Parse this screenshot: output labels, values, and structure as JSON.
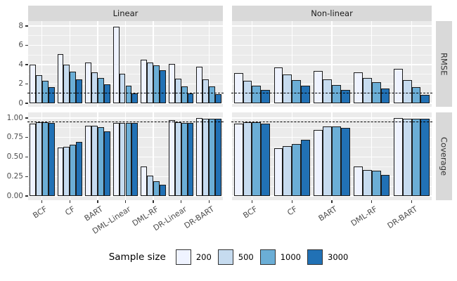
{
  "figure": {
    "facet_columns": [
      "Linear",
      "Non-linear"
    ],
    "facet_rows": [
      "RMSE",
      "Coverage"
    ],
    "legend": {
      "title": "Sample size",
      "keys": [
        {
          "label": "200",
          "color": "#EFF3FF"
        },
        {
          "label": "500",
          "color": "#C6DBEF"
        },
        {
          "label": "1000",
          "color": "#6BAED6"
        },
        {
          "label": "3000",
          "color": "#2171B5"
        }
      ]
    },
    "colors": {
      "panel_background": "#EBEBEB",
      "strip_background": "#D9D9D9",
      "gridline": "#FFFFFF",
      "bar_outline": "#1A1A1A",
      "axis_text": "#4D4D4D",
      "reference_line": "#000000"
    }
  },
  "chart_data": [
    {
      "type": "bar",
      "facet_row": "RMSE",
      "facet_column": "Linear",
      "categories": [
        "BCF",
        "CF",
        "BART",
        "DML-Linear",
        "DML-RF",
        "DR-Linear",
        "DR-BART"
      ],
      "series": [
        {
          "name": "200",
          "values": [
            4.0,
            5.1,
            4.2,
            7.9,
            4.5,
            4.1,
            3.8
          ]
        },
        {
          "name": "500",
          "values": [
            2.9,
            4.0,
            3.2,
            3.05,
            4.25,
            2.55,
            2.5
          ]
        },
        {
          "name": "1000",
          "values": [
            2.35,
            3.3,
            2.65,
            1.85,
            3.95,
            1.75,
            1.75
          ]
        },
        {
          "name": "3000",
          "values": [
            1.7,
            2.5,
            1.95,
            1.0,
            3.45,
            1.0,
            0.95
          ]
        }
      ],
      "ylim": [
        0,
        8.5
      ],
      "yticks": [
        {
          "label": "0",
          "value": 0
        },
        {
          "label": "2",
          "value": 2
        },
        {
          "label": "4",
          "value": 4
        },
        {
          "label": "6",
          "value": 6
        },
        {
          "label": "8",
          "value": 8
        }
      ],
      "ref_line": 1,
      "grid": true,
      "legend_position": "bottom"
    },
    {
      "type": "bar",
      "facet_row": "RMSE",
      "facet_column": "Non-linear",
      "categories": [
        "BCF",
        "CF",
        "BART",
        "DML-RF",
        "DR-BART"
      ],
      "series": [
        {
          "name": "200",
          "values": [
            3.15,
            3.7,
            3.35,
            3.2,
            3.6
          ]
        },
        {
          "name": "500",
          "values": [
            2.3,
            2.95,
            2.45,
            2.65,
            2.4
          ]
        },
        {
          "name": "1000",
          "values": [
            1.8,
            2.4,
            1.9,
            2.2,
            1.7
          ]
        },
        {
          "name": "3000",
          "values": [
            1.35,
            1.8,
            1.4,
            1.5,
            0.85
          ]
        }
      ],
      "ylim": [
        0,
        8.5
      ],
      "yticks": [
        {
          "label": "0",
          "value": 0
        },
        {
          "label": "2",
          "value": 2
        },
        {
          "label": "4",
          "value": 4
        },
        {
          "label": "6",
          "value": 6
        },
        {
          "label": "8",
          "value": 8
        }
      ],
      "ref_line": 1,
      "grid": true,
      "legend_position": "bottom"
    },
    {
      "type": "bar",
      "facet_row": "Coverage",
      "facet_column": "Linear",
      "categories": [
        "BCF",
        "CF",
        "BART",
        "DML-Linear",
        "DML-RF",
        "DR-Linear",
        "DR-BART"
      ],
      "series": [
        {
          "name": "200",
          "values": [
            0.93,
            0.62,
            0.9,
            0.94,
            0.38,
            0.97,
            1.0
          ]
        },
        {
          "name": "500",
          "values": [
            0.95,
            0.63,
            0.9,
            0.94,
            0.26,
            0.95,
            0.99
          ]
        },
        {
          "name": "1000",
          "values": [
            0.95,
            0.66,
            0.88,
            0.94,
            0.19,
            0.94,
            0.99
          ]
        },
        {
          "name": "3000",
          "values": [
            0.94,
            0.69,
            0.83,
            0.94,
            0.14,
            0.94,
            0.99
          ]
        }
      ],
      "ylim": [
        0,
        1.05
      ],
      "yticks": [
        {
          "label": "0.00",
          "value": 0
        },
        {
          "label": "0.25",
          "value": 0.25
        },
        {
          "label": "0.50",
          "value": 0.5
        },
        {
          "label": "0.75",
          "value": 0.75
        },
        {
          "label": "1.00",
          "value": 1
        }
      ],
      "ref_line": 0.95,
      "grid": true,
      "legend_position": "bottom"
    },
    {
      "type": "bar",
      "facet_row": "Coverage",
      "facet_column": "Non-linear",
      "categories": [
        "BCF",
        "CF",
        "BART",
        "DML-RF",
        "DR-BART"
      ],
      "series": [
        {
          "name": "200",
          "values": [
            0.93,
            0.61,
            0.85,
            0.38,
            1.0
          ]
        },
        {
          "name": "500",
          "values": [
            0.95,
            0.64,
            0.89,
            0.33,
            0.99
          ]
        },
        {
          "name": "1000",
          "values": [
            0.95,
            0.67,
            0.89,
            0.32,
            0.99
          ]
        },
        {
          "name": "3000",
          "values": [
            0.93,
            0.72,
            0.87,
            0.27,
            0.99
          ]
        }
      ],
      "ylim": [
        0,
        1.05
      ],
      "yticks": [
        {
          "label": "0.00",
          "value": 0
        },
        {
          "label": "0.25",
          "value": 0.25
        },
        {
          "label": "0.50",
          "value": 0.5
        },
        {
          "label": "0.75",
          "value": 0.75
        },
        {
          "label": "1.00",
          "value": 1
        }
      ],
      "ref_line": 0.95,
      "grid": true,
      "legend_position": "bottom"
    }
  ]
}
